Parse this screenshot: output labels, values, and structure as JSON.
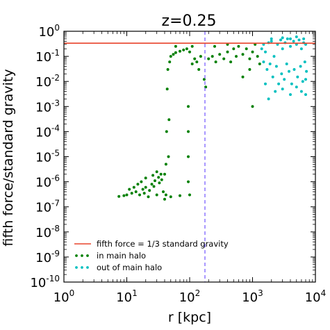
{
  "chart_data": {
    "type": "scatter",
    "title": "z=0.25",
    "xlabel": "r [kpc]",
    "ylabel": "fifth force/standard gravity",
    "xscale": "log",
    "yscale": "log",
    "xlim": [
      1,
      10000
    ],
    "ylim": [
      1e-10,
      1
    ],
    "grid": false,
    "legend_position": "lower-left",
    "x_ticks": [
      {
        "base": "10",
        "exp": "0",
        "value": 1
      },
      {
        "base": "10",
        "exp": "1",
        "value": 10
      },
      {
        "base": "10",
        "exp": "2",
        "value": 100
      },
      {
        "base": "10",
        "exp": "3",
        "value": 1000
      },
      {
        "base": "10",
        "exp": "4",
        "value": 10000
      }
    ],
    "y_ticks": [
      {
        "base": "10",
        "exp": "0",
        "value": 1
      },
      {
        "base": "10",
        "exp": "-1",
        "value": 0.1
      },
      {
        "base": "10",
        "exp": "-2",
        "value": 0.01
      },
      {
        "base": "10",
        "exp": "-3",
        "value": 0.001
      },
      {
        "base": "10",
        "exp": "-4",
        "value": 0.0001
      },
      {
        "base": "10",
        "exp": "-5",
        "value": 1e-05
      },
      {
        "base": "10",
        "exp": "-6",
        "value": 1e-06
      },
      {
        "base": "10",
        "exp": "-7",
        "value": 1e-07
      },
      {
        "base": "10",
        "exp": "-8",
        "value": 1e-08
      },
      {
        "base": "10",
        "exp": "-9",
        "value": 1e-09
      },
      {
        "base": "10",
        "exp": "-10",
        "value": 1e-10
      }
    ],
    "reference_lines": [
      {
        "kind": "horizontal",
        "y": 0.3333,
        "color": "#e8432b",
        "style": "solid",
        "name": "fifth force = 1/3 standard gravity"
      },
      {
        "kind": "vertical",
        "x": 175,
        "color": "#7b61ff",
        "style": "dashed"
      }
    ],
    "series": [
      {
        "name": "in main halo",
        "color": "#008000",
        "points": [
          [
            7.5,
            2.6e-07
          ],
          [
            9,
            2.8e-07
          ],
          [
            10,
            3e-07
          ],
          [
            12,
            3.5e-07
          ],
          [
            14,
            4e-07
          ],
          [
            16,
            3e-07
          ],
          [
            18,
            5e-07
          ],
          [
            20,
            6e-07
          ],
          [
            22,
            2.5e-07
          ],
          [
            25,
            8e-07
          ],
          [
            28,
            1.1e-06
          ],
          [
            30,
            3e-07
          ],
          [
            32,
            1.5e-06
          ],
          [
            35,
            2e-06
          ],
          [
            38,
            4e-07
          ],
          [
            40,
            2e-07
          ],
          [
            13,
            6e-07
          ],
          [
            15,
            8e-07
          ],
          [
            17,
            1e-06
          ],
          [
            20,
            1.4e-06
          ],
          [
            26,
            1.8e-06
          ],
          [
            30,
            2.5e-06
          ],
          [
            11,
            5e-07
          ],
          [
            19,
            3.5e-07
          ],
          [
            23,
            4.5e-07
          ],
          [
            27,
            6.5e-07
          ],
          [
            33,
            9e-07
          ],
          [
            36,
            1.2e-06
          ],
          [
            40,
            2e-06
          ],
          [
            42,
            5e-06
          ],
          [
            43,
            0.0001
          ],
          [
            44,
            0.005
          ],
          [
            45,
            0.03
          ],
          [
            46,
            1e-05
          ],
          [
            47,
            0.0003
          ],
          [
            48,
            0.06
          ],
          [
            50,
            0.1
          ],
          [
            55,
            0.12
          ],
          [
            60,
            0.14
          ],
          [
            70,
            0.16
          ],
          [
            80,
            0.18
          ],
          [
            90,
            0.2
          ],
          [
            100,
            0.15
          ],
          [
            110,
            0.05
          ],
          [
            120,
            0.08
          ],
          [
            130,
            0.06
          ],
          [
            140,
            0.03
          ],
          [
            150,
            0.1
          ],
          [
            170,
            0.012
          ],
          [
            180,
            0.006
          ],
          [
            200,
            0.08
          ],
          [
            230,
            0.1
          ],
          [
            260,
            0.06
          ],
          [
            300,
            0.12
          ],
          [
            350,
            0.08
          ],
          [
            400,
            0.15
          ],
          [
            450,
            0.06
          ],
          [
            500,
            0.2
          ],
          [
            550,
            0.1
          ],
          [
            600,
            0.25
          ],
          [
            700,
            0.12
          ],
          [
            800,
            0.2
          ],
          [
            900,
            0.08
          ],
          [
            1000,
            0.15
          ],
          [
            1100,
            0.3
          ],
          [
            1200,
            0.1
          ],
          [
            1300,
            0.05
          ],
          [
            700,
            0.015
          ],
          [
            900,
            0.03
          ],
          [
            1000,
            0.001
          ],
          [
            60,
            0.25
          ],
          [
            110,
            0.25
          ],
          [
            250,
            0.25
          ],
          [
            400,
            0.3
          ],
          [
            95,
            1e-06
          ],
          [
            95,
            1e-05
          ],
          [
            95,
            0.0001
          ],
          [
            95,
            0.001
          ],
          [
            42,
            3e-07
          ],
          [
            100,
            3e-07
          ],
          [
            70,
            2.8e-07
          ],
          [
            50,
            2.5e-07
          ]
        ]
      },
      {
        "name": "out of main halo",
        "color": "#00c0c0",
        "points": [
          [
            1400,
            0.2
          ],
          [
            1500,
            0.3
          ],
          [
            1600,
            0.15
          ],
          [
            1800,
            0.35
          ],
          [
            2000,
            0.4
          ],
          [
            2200,
            0.1
          ],
          [
            2500,
            0.3
          ],
          [
            2800,
            0.45
          ],
          [
            3000,
            0.2
          ],
          [
            3300,
            0.35
          ],
          [
            3600,
            0.5
          ],
          [
            4000,
            0.25
          ],
          [
            4500,
            0.4
          ],
          [
            5000,
            0.3
          ],
          [
            5500,
            0.45
          ],
          [
            6000,
            0.2
          ],
          [
            6500,
            0.35
          ],
          [
            7000,
            0.3
          ],
          [
            1500,
            0.06
          ],
          [
            1700,
            0.03
          ],
          [
            1900,
            0.05
          ],
          [
            2100,
            0.015
          ],
          [
            2400,
            0.04
          ],
          [
            2600,
            0.008
          ],
          [
            2900,
            0.02
          ],
          [
            3200,
            0.012
          ],
          [
            3500,
            0.05
          ],
          [
            3800,
            0.025
          ],
          [
            4200,
            0.008
          ],
          [
            4600,
            0.03
          ],
          [
            5200,
            0.015
          ],
          [
            5800,
            0.04
          ],
          [
            6300,
            0.01
          ],
          [
            6800,
            0.06
          ],
          [
            7200,
            0.025
          ],
          [
            1600,
            0.008
          ],
          [
            2300,
            0.004
          ],
          [
            1800,
            0.002
          ],
          [
            3000,
            0.005
          ],
          [
            4000,
            0.003
          ],
          [
            5000,
            0.006
          ],
          [
            6000,
            0.004
          ],
          [
            7000,
            0.012
          ],
          [
            7000,
            0.003
          ],
          [
            2000,
            0.5
          ],
          [
            3000,
            0.55
          ],
          [
            4000,
            0.5
          ],
          [
            5000,
            0.6
          ],
          [
            6500,
            0.5
          ]
        ]
      }
    ],
    "legend": [
      {
        "label": "fifth force = 1/3 standard gravity",
        "color": "#e8432b",
        "marker": "line"
      },
      {
        "label": "in main halo",
        "color": "#008000",
        "marker": "dots"
      },
      {
        "label": "out of main halo",
        "color": "#00c0c0",
        "marker": "dots"
      }
    ]
  }
}
